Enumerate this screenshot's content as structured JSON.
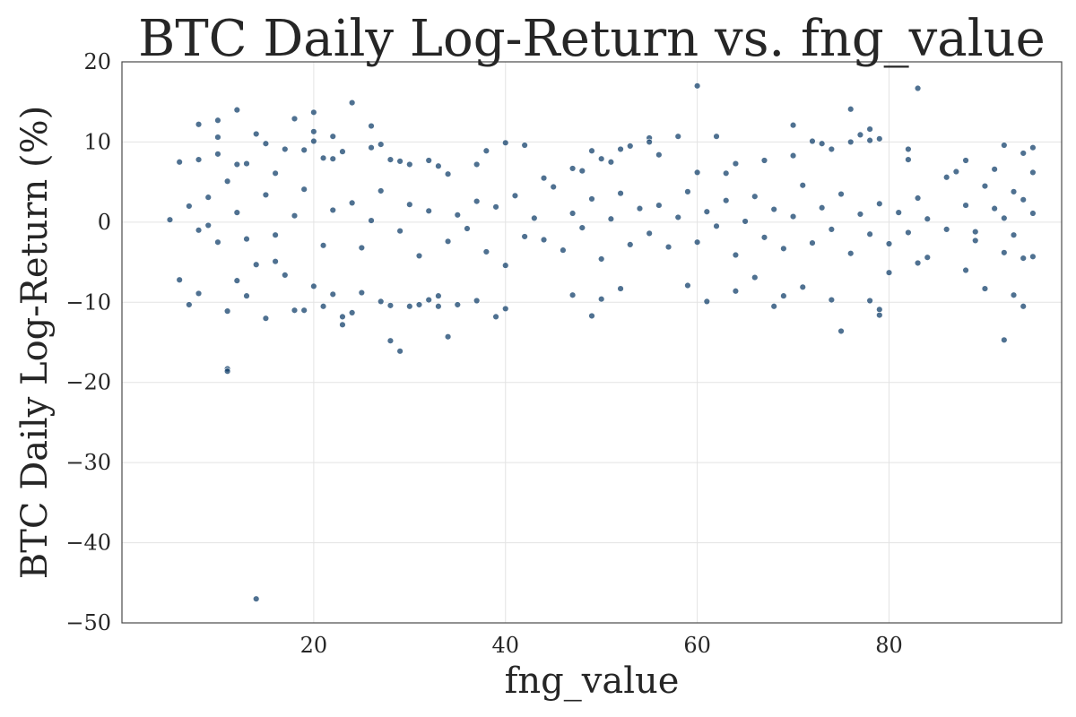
{
  "chart_data": {
    "type": "scatter",
    "title": "BTC Daily Log-Return vs. fng_value",
    "xlabel": "fng_value",
    "ylabel": "BTC Daily Log-Return (%)",
    "xlim": [
      0,
      98
    ],
    "ylim": [
      -50,
      20
    ],
    "xticks": [
      20,
      40,
      60,
      80
    ],
    "yticks": [
      20,
      10,
      0,
      -10,
      -20,
      -30,
      -40,
      -50
    ],
    "grid": true,
    "legend": "none",
    "point_color": "#0b3a66",
    "series": [
      {
        "points": [
          [
            5,
            0.3
          ],
          [
            6,
            7.5
          ],
          [
            6,
            -7.2
          ],
          [
            7,
            2
          ],
          [
            7,
            -10.3
          ],
          [
            8,
            12.2
          ],
          [
            8,
            7.8
          ],
          [
            8,
            -1
          ],
          [
            8,
            -8.9
          ],
          [
            10,
            12.7
          ],
          [
            10,
            10.6
          ],
          [
            10,
            8.5
          ],
          [
            10,
            -2.5
          ],
          [
            11,
            -18.3
          ],
          [
            11,
            -18.6
          ],
          [
            11,
            -11.1
          ],
          [
            11,
            5.1
          ],
          [
            12,
            14
          ],
          [
            12,
            7.2
          ],
          [
            12,
            -7.3
          ],
          [
            13,
            7.3
          ],
          [
            13,
            -9.2
          ],
          [
            14,
            11
          ],
          [
            14,
            -47
          ],
          [
            14,
            -5.3
          ],
          [
            15,
            9.8
          ],
          [
            15,
            -12
          ],
          [
            16,
            6.1
          ],
          [
            16,
            -4.9
          ],
          [
            17,
            9.1
          ],
          [
            17,
            -6.6
          ],
          [
            18,
            12.9
          ],
          [
            18,
            -11
          ],
          [
            19,
            9
          ],
          [
            19,
            -11
          ],
          [
            20,
            13.7
          ],
          [
            20,
            11.3
          ],
          [
            20,
            10.1
          ],
          [
            20,
            -8
          ],
          [
            21,
            -10.5
          ],
          [
            21,
            8
          ],
          [
            22,
            10.7
          ],
          [
            22,
            7.9
          ],
          [
            22,
            -9
          ],
          [
            23,
            8.8
          ],
          [
            23,
            -11.8
          ],
          [
            23,
            -12.8
          ],
          [
            24,
            14.9
          ],
          [
            24,
            -11.3
          ],
          [
            25,
            -8.8
          ],
          [
            26,
            12
          ],
          [
            26,
            9.3
          ],
          [
            27,
            9.7
          ],
          [
            27,
            -9.9
          ],
          [
            28,
            7.8
          ],
          [
            28,
            -14.8
          ],
          [
            28,
            -10.4
          ],
          [
            29,
            7.6
          ],
          [
            29,
            -16.1
          ],
          [
            30,
            7.2
          ],
          [
            30,
            -10.5
          ],
          [
            31,
            -10.3
          ],
          [
            32,
            7.7
          ],
          [
            32,
            -9.7
          ],
          [
            33,
            -9.2
          ],
          [
            33,
            7
          ],
          [
            33,
            -10.5
          ],
          [
            34,
            -14.3
          ],
          [
            34,
            6
          ],
          [
            35,
            -10.3
          ],
          [
            37,
            7.2
          ],
          [
            37,
            -9.8
          ],
          [
            38,
            8.9
          ],
          [
            39,
            -11.8
          ],
          [
            40,
            9.9
          ],
          [
            40,
            -10.8
          ],
          [
            42,
            9.6
          ],
          [
            44,
            5.5
          ],
          [
            47,
            6.7
          ],
          [
            47,
            -9.1
          ],
          [
            48,
            6.4
          ],
          [
            49,
            8.9
          ],
          [
            49,
            -11.7
          ],
          [
            50,
            7.9
          ],
          [
            50,
            -9.6
          ],
          [
            51,
            7.5
          ],
          [
            52,
            9.1
          ],
          [
            52,
            -8.3
          ],
          [
            53,
            9.5
          ],
          [
            55,
            10.5
          ],
          [
            55,
            10
          ],
          [
            56,
            8.4
          ],
          [
            58,
            10.7
          ],
          [
            59,
            -7.9
          ],
          [
            60,
            17
          ],
          [
            60,
            6.2
          ],
          [
            61,
            -9.9
          ],
          [
            62,
            10.7
          ],
          [
            63,
            6.1
          ],
          [
            64,
            -8.6
          ],
          [
            64,
            7.3
          ],
          [
            66,
            -6.9
          ],
          [
            67,
            7.7
          ],
          [
            68,
            -10.5
          ],
          [
            69,
            -9.2
          ],
          [
            70,
            12.1
          ],
          [
            70,
            8.3
          ],
          [
            71,
            -8.1
          ],
          [
            72,
            10.1
          ],
          [
            73,
            9.8
          ],
          [
            74,
            9.1
          ],
          [
            74,
            -9.7
          ],
          [
            75,
            -13.6
          ],
          [
            76,
            14.1
          ],
          [
            76,
            10
          ],
          [
            77,
            10.9
          ],
          [
            78,
            11.6
          ],
          [
            78,
            10.2
          ],
          [
            78,
            -9.8
          ],
          [
            79,
            10.4
          ],
          [
            79,
            -11.6
          ],
          [
            79,
            -10.9
          ],
          [
            80,
            -6.3
          ],
          [
            82,
            9.1
          ],
          [
            82,
            7.8
          ],
          [
            83,
            16.7
          ],
          [
            83,
            -5.1
          ],
          [
            84,
            -4.4
          ],
          [
            86,
            5.6
          ],
          [
            87,
            6.3
          ],
          [
            88,
            7.7
          ],
          [
            88,
            -6
          ],
          [
            89,
            -1.2
          ],
          [
            90,
            4.5
          ],
          [
            90,
            -8.3
          ],
          [
            91,
            6.6
          ],
          [
            92,
            9.6
          ],
          [
            92,
            -14.7
          ],
          [
            92,
            -3.8
          ],
          [
            93,
            -9.1
          ],
          [
            93,
            3.8
          ],
          [
            94,
            8.6
          ],
          [
            94,
            -10.5
          ],
          [
            94,
            -4.5
          ],
          [
            95,
            9.3
          ],
          [
            95,
            6.2
          ],
          [
            95,
            -4.3
          ],
          [
            9,
            3.1
          ],
          [
            9,
            -0.4
          ],
          [
            12,
            1.2
          ],
          [
            13,
            -2.1
          ],
          [
            15,
            3.4
          ],
          [
            16,
            -1.6
          ],
          [
            18,
            0.8
          ],
          [
            19,
            4.1
          ],
          [
            21,
            -2.9
          ],
          [
            22,
            1.5
          ],
          [
            24,
            2.4
          ],
          [
            25,
            -3.2
          ],
          [
            26,
            0.2
          ],
          [
            27,
            3.9
          ],
          [
            29,
            -1.1
          ],
          [
            30,
            2.2
          ],
          [
            31,
            -4.2
          ],
          [
            32,
            1.4
          ],
          [
            34,
            -2.4
          ],
          [
            35,
            0.9
          ],
          [
            36,
            -0.8
          ],
          [
            37,
            2.6
          ],
          [
            38,
            -3.7
          ],
          [
            39,
            1.9
          ],
          [
            40,
            -5.4
          ],
          [
            41,
            3.3
          ],
          [
            42,
            -1.8
          ],
          [
            43,
            0.5
          ],
          [
            44,
            -2.2
          ],
          [
            45,
            4.4
          ],
          [
            46,
            -3.5
          ],
          [
            47,
            1.1
          ],
          [
            48,
            -0.7
          ],
          [
            49,
            2.9
          ],
          [
            50,
            -4.6
          ],
          [
            51,
            0.4
          ],
          [
            52,
            3.6
          ],
          [
            53,
            -2.8
          ],
          [
            54,
            1.7
          ],
          [
            55,
            -1.4
          ],
          [
            56,
            2.1
          ],
          [
            57,
            -3.1
          ],
          [
            58,
            0.6
          ],
          [
            59,
            3.8
          ],
          [
            60,
            -2.5
          ],
          [
            61,
            1.3
          ],
          [
            62,
            -0.5
          ],
          [
            63,
            2.7
          ],
          [
            64,
            -4.1
          ],
          [
            65,
            0.1
          ],
          [
            66,
            3.2
          ],
          [
            67,
            -1.9
          ],
          [
            68,
            1.6
          ],
          [
            69,
            -3.3
          ],
          [
            70,
            0.7
          ],
          [
            71,
            4.6
          ],
          [
            72,
            -2.6
          ],
          [
            73,
            1.8
          ],
          [
            74,
            -0.9
          ],
          [
            75,
            3.5
          ],
          [
            76,
            -3.9
          ],
          [
            77,
            1
          ],
          [
            78,
            -1.5
          ],
          [
            79,
            2.3
          ],
          [
            80,
            -2.7
          ],
          [
            81,
            1.2
          ],
          [
            82,
            -1.3
          ],
          [
            83,
            3
          ],
          [
            84,
            0.4
          ],
          [
            86,
            -0.9
          ],
          [
            88,
            2.1
          ],
          [
            89,
            -2.3
          ],
          [
            91,
            1.7
          ],
          [
            92,
            0.5
          ],
          [
            93,
            -1.6
          ],
          [
            94,
            2.8
          ],
          [
            95,
            1.1
          ]
        ]
      }
    ]
  }
}
